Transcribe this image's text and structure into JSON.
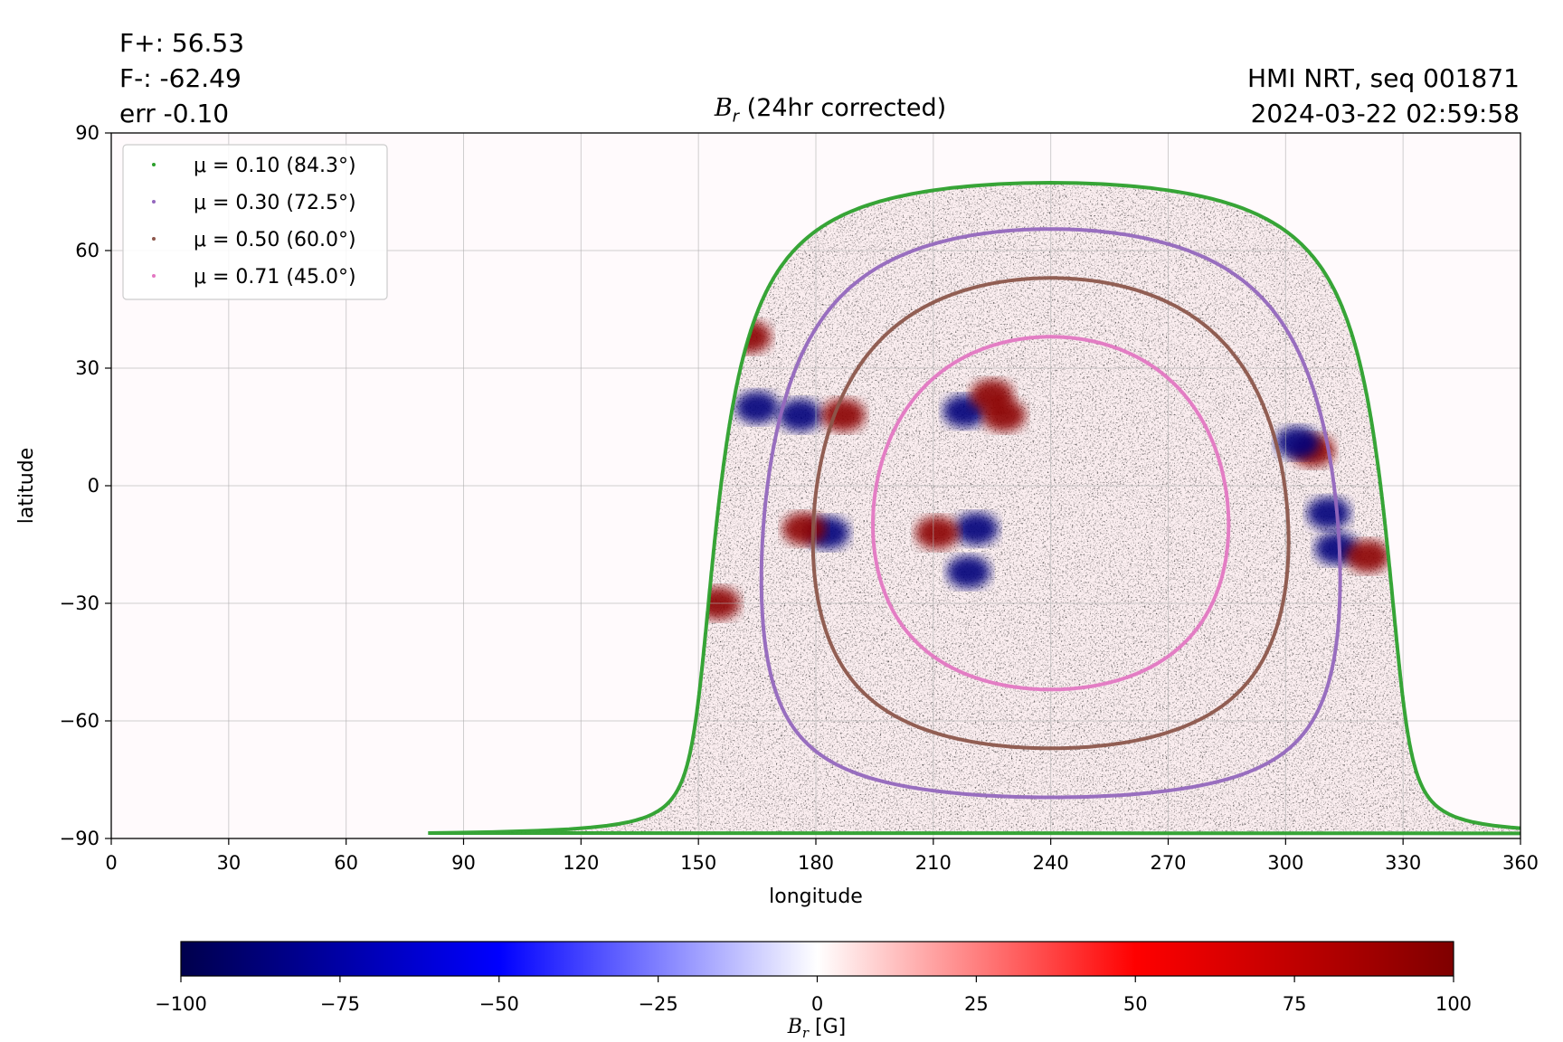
{
  "header": {
    "flux_pos": "F+: 56.53",
    "flux_neg": "F-: -62.49",
    "flux_err": "err -0.10",
    "source": "HMI NRT, seq 001871",
    "timestamp": "2024-03-22 02:59:58"
  },
  "chart_data": {
    "type": "heatmap",
    "title_symbol": "B",
    "title_sub": "r",
    "title_rest": " (24hr corrected)",
    "xlabel": "longitude",
    "ylabel": "latitude",
    "xlim": [
      0,
      360
    ],
    "ylim": [
      -90,
      90
    ],
    "xticks": [
      0,
      30,
      60,
      90,
      120,
      150,
      180,
      210,
      240,
      270,
      300,
      330,
      360
    ],
    "yticks": [
      90,
      60,
      30,
      0,
      -30,
      -60,
      -90
    ],
    "ytick_labels": [
      "90",
      "60",
      "30",
      "0",
      "−30",
      "−60",
      "−90"
    ],
    "grid": true,
    "legend_placement": "top-left",
    "disk_center": {
      "lon": 240,
      "lat": -7
    },
    "series": [
      {
        "name": "μ = 0.10 (84.3°)",
        "color": "#2ca02c",
        "angle_deg": 84.3
      },
      {
        "name": "μ = 0.30 (72.5°)",
        "color": "#9467bd",
        "angle_deg": 72.5
      },
      {
        "name": "μ = 0.50 (60.0°)",
        "color": "#8c564b",
        "angle_deg": 60.0
      },
      {
        "name": "μ = 0.71 (45.0°)",
        "color": "#e377c2",
        "angle_deg": 45.0
      }
    ],
    "active_regions": [
      {
        "lon": 165,
        "lat": 20,
        "sign": -1
      },
      {
        "lon": 176,
        "lat": 18,
        "sign": -1
      },
      {
        "lon": 187,
        "lat": 18,
        "sign": 1
      },
      {
        "lon": 183,
        "lat": -12,
        "sign": -1
      },
      {
        "lon": 177,
        "lat": -11,
        "sign": 1
      },
      {
        "lon": 218,
        "lat": 19,
        "sign": -1
      },
      {
        "lon": 228,
        "lat": 18,
        "sign": 1
      },
      {
        "lon": 225,
        "lat": 23,
        "sign": 1
      },
      {
        "lon": 221,
        "lat": -11,
        "sign": -1
      },
      {
        "lon": 211,
        "lat": -12,
        "sign": 1
      },
      {
        "lon": 219,
        "lat": -22,
        "sign": -1
      },
      {
        "lon": 307,
        "lat": 9,
        "sign": 1
      },
      {
        "lon": 303,
        "lat": 11,
        "sign": -1
      },
      {
        "lon": 313,
        "lat": -16,
        "sign": -1
      },
      {
        "lon": 321,
        "lat": -18,
        "sign": 1
      },
      {
        "lon": 311,
        "lat": -7,
        "sign": -1
      },
      {
        "lon": 155,
        "lat": -30,
        "sign": 1
      },
      {
        "lon": 163,
        "lat": 38,
        "sign": 1
      }
    ],
    "colorbar": {
      "label_symbol": "B",
      "label_sub": "r",
      "label_unit": " [G]",
      "min": -100,
      "max": 100,
      "ticks": [
        -100,
        -75,
        -50,
        -25,
        0,
        25,
        50,
        75,
        100
      ],
      "tick_labels": [
        "−100",
        "−75",
        "−50",
        "−25",
        "0",
        "25",
        "50",
        "75",
        "100"
      ],
      "colormap": [
        "#00004c",
        "#0000ff",
        "#ffffff",
        "#ff0000",
        "#7f0000"
      ]
    }
  }
}
